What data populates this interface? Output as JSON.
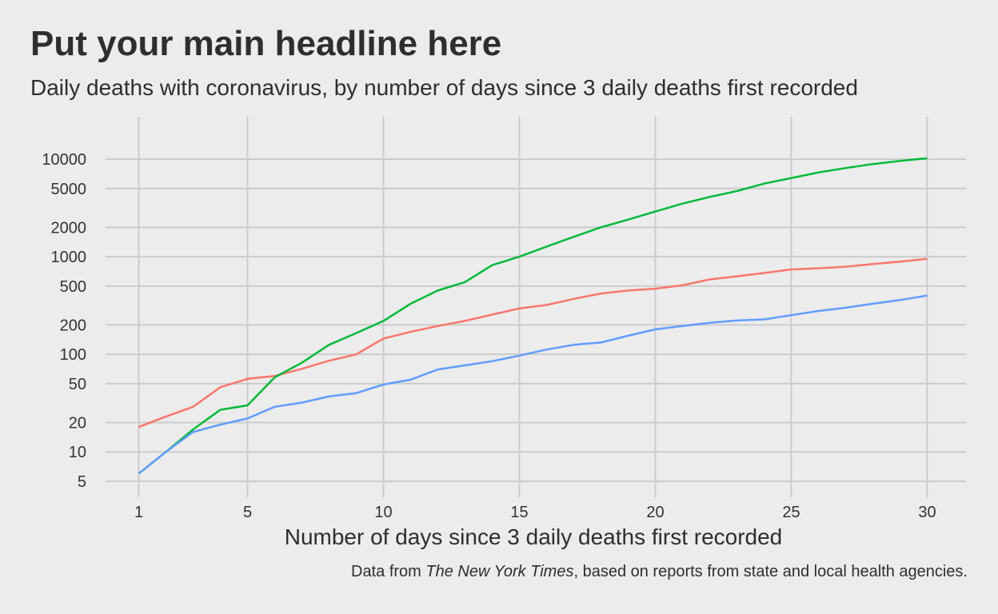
{
  "chart_data": {
    "type": "line",
    "title": "Put your main headline here",
    "subtitle": "Daily deaths with coronavirus, by number of days since 3 daily deaths first recorded",
    "xlabel": "Number of days since 3 daily deaths first recorded",
    "ylabel": "",
    "caption": {
      "prefix": "Data from ",
      "source": "The New York Times",
      "suffix": ", based on reports from state and local health agencies."
    },
    "y_scale": "log",
    "xlim": [
      1,
      30
    ],
    "ylim": [
      5,
      10000
    ],
    "x_ticks": [
      1,
      5,
      10,
      15,
      20,
      25,
      30
    ],
    "y_ticks": [
      5,
      10,
      20,
      50,
      100,
      200,
      500,
      1000,
      2000,
      5000,
      10000
    ],
    "y_tick_labels": [
      "5",
      "10",
      "20",
      "50",
      "100",
      "200",
      "500",
      "1000",
      "2000",
      "5000",
      "10000"
    ],
    "x_tick_labels": [
      "1",
      "5",
      "10",
      "15",
      "20",
      "25",
      "30"
    ],
    "grid": true,
    "legend": "none",
    "x": [
      1,
      2,
      3,
      4,
      5,
      6,
      7,
      8,
      9,
      10,
      11,
      12,
      13,
      14,
      15,
      16,
      17,
      18,
      19,
      20,
      21,
      22,
      23,
      24,
      25,
      26,
      27,
      28,
      29,
      30
    ],
    "series": [
      {
        "color": "#f8766d",
        "values": [
          18,
          23,
          29,
          46,
          56,
          60,
          71,
          86,
          100,
          145,
          170,
          195,
          220,
          255,
          295,
          320,
          370,
          420,
          450,
          470,
          510,
          585,
          630,
          680,
          740,
          760,
          790,
          840,
          890,
          950
        ]
      },
      {
        "color": "#00ba38",
        "values": [
          6,
          10,
          17,
          27,
          30,
          58,
          82,
          125,
          165,
          220,
          330,
          450,
          550,
          820,
          1000,
          1270,
          1600,
          2000,
          2400,
          2900,
          3500,
          4100,
          4700,
          5600,
          6400,
          7300,
          8100,
          8900,
          9600,
          10200
        ]
      },
      {
        "color": "#619cff",
        "values": [
          6,
          10,
          16,
          19,
          22,
          29,
          32,
          37,
          40,
          49,
          55,
          70,
          77,
          85,
          97,
          112,
          125,
          132,
          155,
          180,
          195,
          210,
          222,
          228,
          252,
          278,
          300,
          330,
          360,
          400
        ]
      }
    ]
  }
}
